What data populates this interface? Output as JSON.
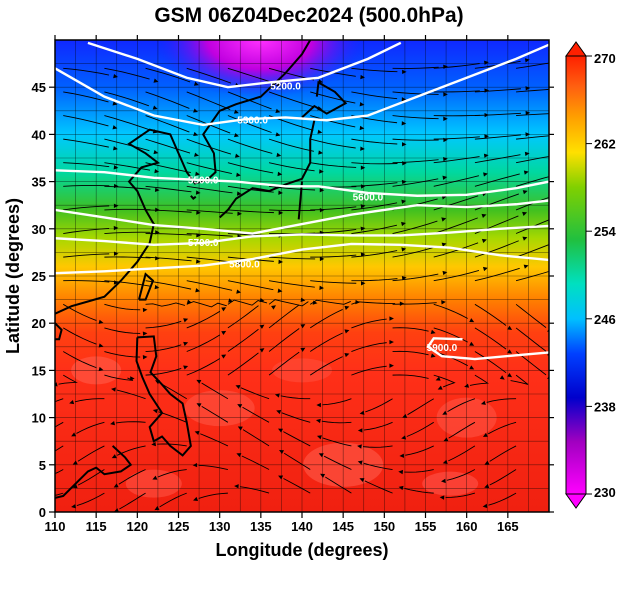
{
  "chart_data": {
    "type": "heatmap",
    "title": "GSM 06Z04Dec2024 (500.0hPa)",
    "xlabel": "Longitude (degrees)",
    "ylabel": "Latitude  (degrees)",
    "xlim": [
      110,
      170
    ],
    "ylim": [
      0,
      50
    ],
    "x_ticks": [
      110,
      115,
      120,
      125,
      130,
      135,
      140,
      145,
      150,
      155,
      160,
      165
    ],
    "y_ticks": [
      0,
      5,
      10,
      15,
      20,
      25,
      30,
      35,
      40,
      45
    ],
    "x_tick_labels": [
      "110",
      "115",
      "120",
      "125",
      "130",
      "135",
      "140",
      "145",
      "150",
      "155",
      "160",
      "165"
    ],
    "y_tick_labels": [
      "0",
      "5",
      "10",
      "15",
      "20",
      "25",
      "30",
      "35",
      "40",
      "45"
    ],
    "colorbar": {
      "min": 230,
      "max": 270,
      "tick_values": [
        230,
        238,
        246,
        254,
        262,
        270
      ],
      "tick_labels": [
        "230",
        "238",
        "246",
        "254",
        "262",
        "270"
      ]
    },
    "temperature_rows": {
      "latitudes": [
        50,
        45,
        40,
        35,
        30,
        25,
        20,
        15,
        10,
        5,
        0
      ],
      "values_K": [
        240,
        243,
        247,
        251,
        256,
        260,
        265,
        266,
        266,
        266,
        266
      ]
    },
    "contours": [
      {
        "label": "5200.0",
        "points": [
          [
            114,
            49.7
          ],
          [
            120,
            48
          ],
          [
            126,
            46
          ],
          [
            131,
            45
          ],
          [
            136,
            45.5
          ],
          [
            142,
            46
          ],
          [
            148,
            48
          ],
          [
            152,
            49.7
          ]
        ],
        "label_at": [
          138,
          45.2
        ]
      },
      {
        "label": "5300.0",
        "points": [
          [
            110,
            47
          ],
          [
            116,
            44
          ],
          [
            122,
            42
          ],
          [
            128,
            41
          ],
          [
            133,
            41.6
          ],
          [
            138,
            41.8
          ],
          [
            143,
            41.5
          ],
          [
            148,
            42
          ],
          [
            154,
            44
          ],
          [
            160,
            46
          ],
          [
            166,
            48
          ],
          [
            170,
            49.5
          ]
        ],
        "label_at": [
          134,
          41.6
        ]
      },
      {
        "label": "5500.0",
        "points": [
          [
            110,
            36.2
          ],
          [
            116,
            36
          ],
          [
            122,
            35.4
          ],
          [
            127,
            35.2
          ],
          [
            132,
            35
          ],
          [
            138,
            34.5
          ],
          [
            142,
            34.5
          ],
          [
            148,
            33.8
          ],
          [
            154,
            33.5
          ],
          [
            160,
            33.6
          ],
          [
            166,
            34.3
          ],
          [
            170,
            35
          ]
        ],
        "label_at": [
          128,
          35.2
        ]
      },
      {
        "label": "5600.0",
        "points": [
          [
            110,
            32
          ],
          [
            116,
            31.2
          ],
          [
            122,
            30.4
          ],
          [
            128,
            30
          ],
          [
            134,
            29.5
          ],
          [
            140,
            30.5
          ],
          [
            146,
            31.5
          ],
          [
            150,
            32
          ],
          [
            154,
            32.5
          ],
          [
            160,
            32.3
          ],
          [
            166,
            32.6
          ],
          [
            170,
            33
          ]
        ],
        "label_at": [
          148,
          33.4
        ]
      },
      {
        "label": "5700.0",
        "points": [
          [
            110,
            29
          ],
          [
            116,
            28.7
          ],
          [
            122,
            28.3
          ],
          [
            128,
            28.5
          ],
          [
            134,
            29.2
          ],
          [
            140,
            29.4
          ],
          [
            146,
            29.3
          ],
          [
            152,
            29.3
          ],
          [
            158,
            29.6
          ],
          [
            164,
            30
          ],
          [
            170,
            30.3
          ]
        ],
        "label_at": [
          128,
          28.6
        ]
      },
      {
        "label": "5800.0",
        "points": [
          [
            110,
            25.3
          ],
          [
            116,
            25.5
          ],
          [
            122,
            25.8
          ],
          [
            128,
            26.1
          ],
          [
            134,
            26.8
          ],
          [
            140,
            27.8
          ],
          [
            146,
            28.4
          ],
          [
            152,
            28.3
          ],
          [
            158,
            28
          ],
          [
            164,
            27.2
          ],
          [
            170,
            26.7
          ]
        ],
        "label_at": [
          133,
          26.3
        ]
      },
      {
        "label": "5900.0",
        "points": [
          [
            159.5,
            18.3
          ],
          [
            156,
            18.4
          ],
          [
            155.3,
            17.5
          ],
          [
            157,
            16.5
          ],
          [
            161,
            16.2
          ],
          [
            166,
            16.6
          ],
          [
            170,
            16.9
          ]
        ],
        "label_at": [
          157,
          17.5
        ]
      }
    ]
  }
}
